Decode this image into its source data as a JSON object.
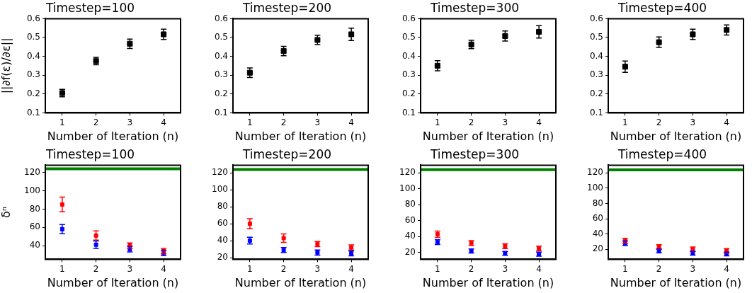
{
  "chart_data": [
    {
      "type": "scatter",
      "title": "Timestep=100",
      "xlabel": "Number of Iteration (n)",
      "ylabel": "||∂f(ε)/∂ε||",
      "x": [
        1,
        2,
        3,
        4
      ],
      "xlim": [
        0.5,
        4.5
      ],
      "xticks": [
        1,
        2,
        3,
        4
      ],
      "ylim": [
        0.1,
        0.6
      ],
      "yticks": [
        0.1,
        0.2,
        0.3,
        0.4,
        0.5,
        0.6
      ],
      "grid": false,
      "marker": "square",
      "series": [
        {
          "color": "#000000",
          "values": [
            0.205,
            0.375,
            0.467,
            0.517
          ],
          "errors": [
            0.02,
            0.02,
            0.025,
            0.027
          ]
        }
      ]
    },
    {
      "type": "scatter",
      "title": "Timestep=200",
      "xlabel": "Number of Iteration (n)",
      "x": [
        1,
        2,
        3,
        4
      ],
      "xlim": [
        0.5,
        4.5
      ],
      "xticks": [
        1,
        2,
        3,
        4
      ],
      "ylim": [
        0.1,
        0.6
      ],
      "yticks": [
        0.1,
        0.2,
        0.3,
        0.4,
        0.5,
        0.6
      ],
      "grid": false,
      "marker": "square",
      "series": [
        {
          "color": "#000000",
          "values": [
            0.313,
            0.428,
            0.487,
            0.517
          ],
          "errors": [
            0.025,
            0.025,
            0.025,
            0.033
          ]
        }
      ]
    },
    {
      "type": "scatter",
      "title": "Timestep=300",
      "xlabel": "Number of Iteration (n)",
      "x": [
        1,
        2,
        3,
        4
      ],
      "xlim": [
        0.5,
        4.5
      ],
      "xticks": [
        1,
        2,
        3,
        4
      ],
      "ylim": [
        0.1,
        0.6
      ],
      "yticks": [
        0.1,
        0.2,
        0.3,
        0.4,
        0.5,
        0.6
      ],
      "grid": false,
      "marker": "square",
      "series": [
        {
          "color": "#000000",
          "values": [
            0.35,
            0.463,
            0.508,
            0.53
          ],
          "errors": [
            0.027,
            0.022,
            0.027,
            0.033
          ]
        }
      ]
    },
    {
      "type": "scatter",
      "title": "Timestep=400",
      "xlabel": "Number of Iteration (n)",
      "x": [
        1,
        2,
        3,
        4
      ],
      "xlim": [
        0.5,
        4.5
      ],
      "xticks": [
        1,
        2,
        3,
        4
      ],
      "ylim": [
        0.1,
        0.6
      ],
      "yticks": [
        0.1,
        0.2,
        0.3,
        0.4,
        0.5,
        0.6
      ],
      "grid": false,
      "marker": "square",
      "series": [
        {
          "color": "#000000",
          "values": [
            0.345,
            0.475,
            0.517,
            0.54
          ],
          "errors": [
            0.03,
            0.028,
            0.027,
            0.027
          ]
        }
      ]
    },
    {
      "type": "scatter",
      "title": "Timestep=100",
      "xlabel": "Number of Iteration (n)",
      "ylabel": "δⁿ",
      "x": [
        1,
        2,
        3,
        4
      ],
      "xlim": [
        0.5,
        4.5
      ],
      "xticks": [
        1,
        2,
        3,
        4
      ],
      "ylim": [
        25,
        128
      ],
      "yticks": [
        40,
        60,
        80,
        100,
        120
      ],
      "grid": false,
      "marker": "square",
      "ref_lines": [
        {
          "axis": "y",
          "value": 124,
          "color": "#008000"
        }
      ],
      "series": [
        {
          "color": "#ff0000",
          "values": [
            85,
            51,
            40,
            34
          ],
          "errors": [
            8,
            5,
            3,
            3
          ]
        },
        {
          "color": "#0000ff",
          "values": [
            58,
            41,
            36,
            32
          ],
          "errors": [
            5,
            4,
            3,
            3
          ]
        }
      ]
    },
    {
      "type": "scatter",
      "title": "Timestep=200",
      "xlabel": "Number of Iteration (n)",
      "x": [
        1,
        2,
        3,
        4
      ],
      "xlim": [
        0.5,
        4.5
      ],
      "xticks": [
        1,
        2,
        3,
        4
      ],
      "ylim": [
        18,
        129
      ],
      "yticks": [
        20,
        40,
        60,
        80,
        100,
        120
      ],
      "grid": false,
      "marker": "square",
      "ref_lines": [
        {
          "axis": "y",
          "value": 124,
          "color": "#008000"
        }
      ],
      "series": [
        {
          "color": "#ff0000",
          "values": [
            60,
            43,
            36,
            32
          ],
          "errors": [
            6,
            5,
            3,
            3
          ]
        },
        {
          "color": "#0000ff",
          "values": [
            40,
            29,
            26,
            25
          ],
          "errors": [
            4,
            3,
            3,
            3
          ]
        }
      ]
    },
    {
      "type": "scatter",
      "title": "Timestep=300",
      "xlabel": "Number of Iteration (n)",
      "x": [
        1,
        2,
        3,
        4
      ],
      "xlim": [
        0.5,
        4.5
      ],
      "xticks": [
        1,
        2,
        3,
        4
      ],
      "ylim": [
        11.5,
        129.6
      ],
      "yticks": [
        20,
        40,
        60,
        80,
        100,
        120
      ],
      "grid": false,
      "marker": "square",
      "ref_lines": [
        {
          "axis": "y",
          "value": 124,
          "color": "#008000"
        }
      ],
      "series": [
        {
          "color": "#ff0000",
          "values": [
            43,
            32,
            28,
            25
          ],
          "errors": [
            4,
            3,
            3,
            3
          ]
        },
        {
          "color": "#0000ff",
          "values": [
            33,
            22,
            19,
            18
          ],
          "errors": [
            3,
            2.5,
            2.5,
            2.5
          ]
        }
      ]
    },
    {
      "type": "scatter",
      "title": "Timestep=400",
      "xlabel": "Number of Iteration (n)",
      "x": [
        1,
        2,
        3,
        4
      ],
      "xlim": [
        0.5,
        4.5
      ],
      "xticks": [
        1,
        2,
        3,
        4
      ],
      "ylim": [
        7,
        130
      ],
      "yticks": [
        20,
        40,
        60,
        80,
        100,
        120
      ],
      "grid": false,
      "marker": "square",
      "ref_lines": [
        {
          "axis": "y",
          "value": 124,
          "color": "#008000"
        }
      ],
      "series": [
        {
          "color": "#ff0000",
          "values": [
            31,
            23,
            20,
            18
          ],
          "errors": [
            3.5,
            3,
            3,
            3
          ]
        },
        {
          "color": "#0000ff",
          "values": [
            28,
            18,
            15,
            14
          ],
          "errors": [
            3,
            2.5,
            2.5,
            2.5
          ]
        }
      ]
    }
  ]
}
